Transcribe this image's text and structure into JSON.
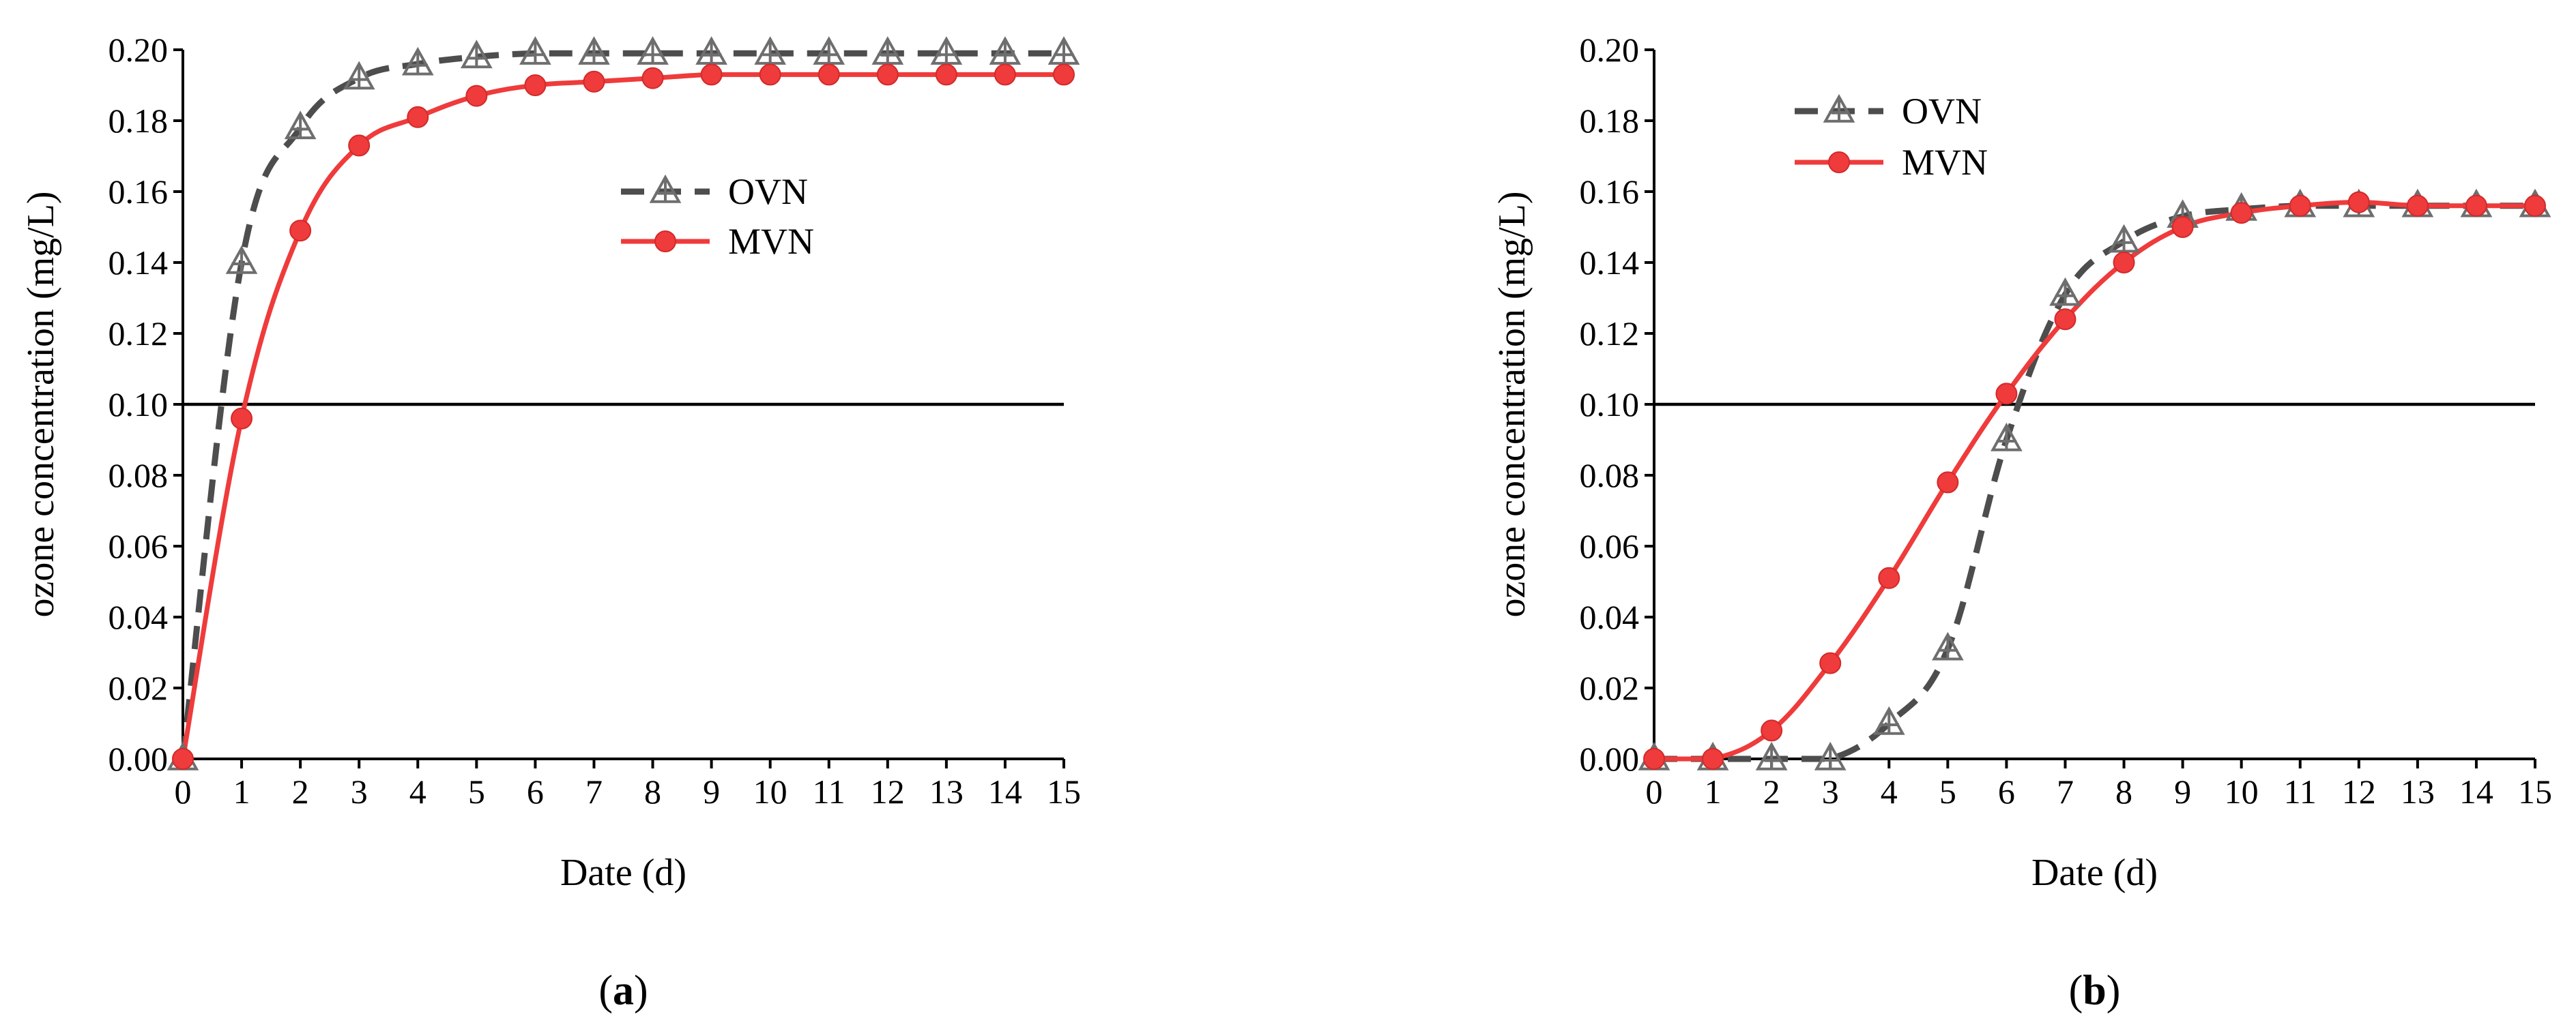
{
  "chart_data": [
    {
      "type": "line",
      "panel_label": "a",
      "title": "",
      "xlabel": "Date (d)",
      "ylabel": "ozone concentration (mg/L)",
      "xlim": [
        0,
        15
      ],
      "ylim": [
        0,
        0.2
      ],
      "x_ticks": [
        "0",
        "1",
        "2",
        "3",
        "4",
        "5",
        "6",
        "7",
        "8",
        "9",
        "10",
        "11",
        "12",
        "13",
        "14",
        "15"
      ],
      "y_ticks": [
        "0.00",
        "0.02",
        "0.04",
        "0.06",
        "0.08",
        "0.10",
        "0.12",
        "0.14",
        "0.16",
        "0.18",
        "0.20"
      ],
      "reference_line": 0.1,
      "legend": {
        "placement": "center-right",
        "entries": [
          "OVN",
          "MVN"
        ]
      },
      "grid": false,
      "x": [
        0,
        1,
        2,
        3,
        4,
        5,
        6,
        7,
        8,
        9,
        10,
        11,
        12,
        13,
        14,
        15
      ],
      "series": [
        {
          "name": "OVN",
          "values": [
            0.0,
            0.14,
            0.178,
            0.192,
            0.196,
            0.198,
            0.199,
            0.199,
            0.199,
            0.199,
            0.199,
            0.199,
            0.199,
            0.199,
            0.199,
            0.199
          ]
        },
        {
          "name": "MVN",
          "values": [
            0.0,
            0.096,
            0.149,
            0.173,
            0.181,
            0.187,
            0.19,
            0.191,
            0.192,
            0.193,
            0.193,
            0.193,
            0.193,
            0.193,
            0.193,
            0.193
          ]
        }
      ],
      "colors": {
        "OVN": "#4d4d4d",
        "MVN": "#ef3b3b"
      }
    },
    {
      "type": "line",
      "panel_label": "b",
      "title": "",
      "xlabel": "Date (d)",
      "ylabel": "ozone concentration (mg/L)",
      "xlim": [
        0,
        15
      ],
      "ylim": [
        0,
        0.2
      ],
      "x_ticks": [
        "0",
        "1",
        "2",
        "3",
        "4",
        "5",
        "6",
        "7",
        "8",
        "9",
        "10",
        "11",
        "12",
        "13",
        "14",
        "15"
      ],
      "y_ticks": [
        "0.00",
        "0.02",
        "0.04",
        "0.06",
        "0.08",
        "0.10",
        "0.12",
        "0.14",
        "0.16",
        "0.18",
        "0.20"
      ],
      "reference_line": 0.1,
      "legend": {
        "placement": "top-left",
        "entries": [
          "OVN",
          "MVN"
        ]
      },
      "grid": false,
      "x": [
        0,
        1,
        2,
        3,
        4,
        5,
        6,
        7,
        8,
        9,
        10,
        11,
        12,
        13,
        14,
        15
      ],
      "series": [
        {
          "name": "OVN",
          "values": [
            0.0,
            0.0,
            0.0,
            0.0,
            0.01,
            0.031,
            0.09,
            0.131,
            0.146,
            0.153,
            0.155,
            0.156,
            0.156,
            0.156,
            0.156,
            0.156
          ]
        },
        {
          "name": "MVN",
          "values": [
            0.0,
            0.0,
            0.008,
            0.027,
            0.051,
            0.078,
            0.103,
            0.124,
            0.14,
            0.15,
            0.154,
            0.156,
            0.157,
            0.156,
            0.156,
            0.156
          ]
        }
      ],
      "colors": {
        "OVN": "#4d4d4d",
        "MVN": "#ef3b3b"
      }
    }
  ]
}
